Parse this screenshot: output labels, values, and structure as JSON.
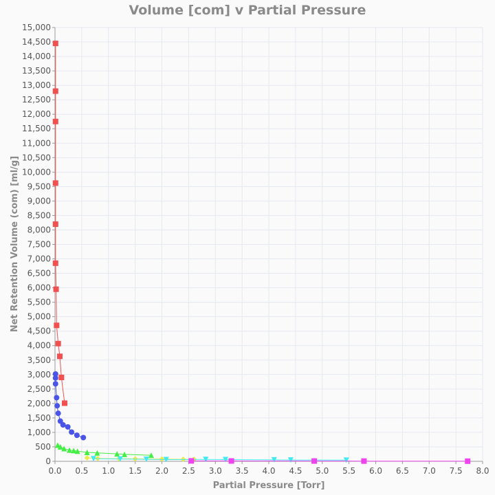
{
  "chart_data": {
    "type": "scatter",
    "title": "Volume [com] v Partial Pressure",
    "xlabel": "Partial Pressure [Torr]",
    "ylabel": "Net Retention Volume (com) [ml/g]",
    "xlim": [
      0,
      8.0
    ],
    "ylim": [
      0,
      15000
    ],
    "x_ticks": [
      "0.0",
      "0.5",
      "1.0",
      "1.5",
      "2.0",
      "2.5",
      "3.0",
      "3.5",
      "4.0",
      "4.5",
      "5.0",
      "5.5",
      "6.0",
      "6.5",
      "7.0",
      "7.5",
      "8.0"
    ],
    "y_ticks": [
      "0",
      "500",
      "1,000",
      "1,500",
      "2,000",
      "2,500",
      "3,000",
      "3,500",
      "4,000",
      "4,500",
      "5,000",
      "5,500",
      "6,000",
      "6,500",
      "7,000",
      "7,500",
      "8,000",
      "8,500",
      "9,000",
      "9,500",
      "10,000",
      "10,500",
      "11,000",
      "11,500",
      "12,000",
      "12,500",
      "13,000",
      "13,500",
      "14,000",
      "14,500",
      "15,000"
    ],
    "grid": true,
    "legend": "none",
    "series": [
      {
        "color": "#f05050",
        "marker": "square",
        "points": [
          [
            0.01,
            14450
          ],
          [
            0.01,
            12800
          ],
          [
            0.01,
            11750
          ],
          [
            0.01,
            9620
          ],
          [
            0.01,
            8200
          ],
          [
            0.01,
            6850
          ],
          [
            0.02,
            5950
          ],
          [
            0.03,
            4700
          ],
          [
            0.06,
            4070
          ],
          [
            0.09,
            3630
          ],
          [
            0.12,
            2900
          ],
          [
            0.18,
            2010
          ]
        ]
      },
      {
        "color": "#4a55e8",
        "marker": "circle",
        "points": [
          [
            0.01,
            3020
          ],
          [
            0.01,
            2880
          ],
          [
            0.01,
            2680
          ],
          [
            0.03,
            2200
          ],
          [
            0.04,
            1920
          ],
          [
            0.06,
            1660
          ],
          [
            0.1,
            1390
          ],
          [
            0.15,
            1260
          ],
          [
            0.24,
            1190
          ],
          [
            0.31,
            1010
          ],
          [
            0.41,
            900
          ],
          [
            0.53,
            820
          ]
        ]
      },
      {
        "color": "#44ee44",
        "marker": "triangle",
        "points": [
          [
            0.05,
            560
          ],
          [
            0.1,
            500
          ],
          [
            0.17,
            440
          ],
          [
            0.27,
            390
          ],
          [
            0.35,
            370
          ],
          [
            0.42,
            350
          ],
          [
            0.6,
            310
          ],
          [
            0.79,
            290
          ],
          [
            1.16,
            260
          ],
          [
            1.3,
            240
          ],
          [
            1.8,
            210
          ]
        ]
      },
      {
        "color": "#ecec50",
        "marker": "diamond",
        "points": [
          [
            0.6,
            120
          ],
          [
            0.8,
            100
          ],
          [
            1.2,
            90
          ],
          [
            1.5,
            85
          ],
          [
            2.0,
            80
          ],
          [
            2.4,
            70
          ],
          [
            2.6,
            70
          ]
        ]
      },
      {
        "color": "#44e8f0",
        "marker": "triangle-down",
        "points": [
          [
            0.72,
            90
          ],
          [
            1.22,
            80
          ],
          [
            1.71,
            70
          ],
          [
            2.08,
            60
          ],
          [
            2.82,
            65
          ],
          [
            3.19,
            60
          ],
          [
            4.1,
            50
          ],
          [
            4.41,
            45
          ],
          [
            5.45,
            40
          ]
        ]
      },
      {
        "color": "#ee44ee",
        "marker": "square",
        "points": [
          [
            2.55,
            15
          ],
          [
            3.3,
            12
          ],
          [
            4.85,
            10
          ],
          [
            5.78,
            8
          ],
          [
            7.72,
            5
          ]
        ]
      }
    ]
  }
}
